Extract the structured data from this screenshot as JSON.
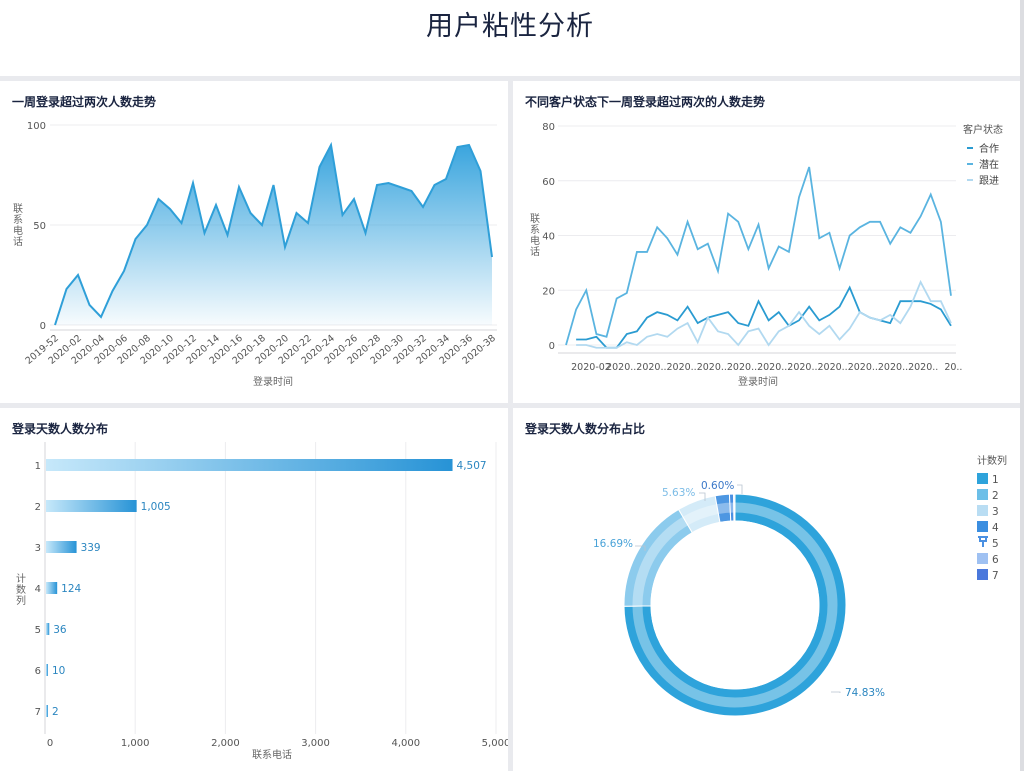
{
  "page": {
    "title": "用户粘性分析"
  },
  "cards": [
    {
      "title": "一周登录超过两次人数走势"
    },
    {
      "title": "不同客户状态下一周登录超过两次的人数走势"
    },
    {
      "title": "登录天数人数分布"
    },
    {
      "title": "登录天数人数分布占比"
    }
  ],
  "chart_data": [
    {
      "type": "area",
      "title": "一周登录超过两次人数走势",
      "xlabel": "登录时间",
      "ylabel": "联系电话",
      "ylim": [
        0,
        100
      ],
      "yticks": [
        "0",
        "50",
        "100"
      ],
      "grid": true,
      "x": [
        "2019-52",
        "2020-01",
        "2020-02",
        "2020-03",
        "2020-04",
        "2020-05",
        "2020-06",
        "2020-07",
        "2020-08",
        "2020-09",
        "2020-10",
        "2020-11",
        "2020-12",
        "2020-13",
        "2020-14",
        "2020-15",
        "2020-16",
        "2020-17",
        "2020-18",
        "2020-19",
        "2020-20",
        "2020-21",
        "2020-22",
        "2020-23",
        "2020-24",
        "2020-25",
        "2020-26",
        "2020-27",
        "2020-28",
        "2020-29",
        "2020-30",
        "2020-31",
        "2020-32",
        "2020-33",
        "2020-34",
        "2020-35",
        "2020-36",
        "2020-37",
        "2020-38"
      ],
      "xticks": [
        "2019-52",
        "2020-02",
        "2020-04",
        "2020-06",
        "2020-08",
        "2020-10",
        "2020-12",
        "2020-14",
        "2020-16",
        "2020-18",
        "2020-20",
        "2020-22",
        "2020-24",
        "2020-26",
        "2020-28",
        "2020-30",
        "2020-32",
        "2020-34",
        "2020-36",
        "2020-38"
      ],
      "values": [
        0,
        18,
        25,
        10,
        4,
        17,
        27,
        43,
        50,
        63,
        58,
        51,
        71,
        46,
        60,
        45,
        69,
        56,
        50,
        70,
        39,
        56,
        51,
        79,
        90,
        55,
        63,
        46,
        70,
        71,
        69,
        67,
        59,
        70,
        73,
        89,
        90,
        77,
        34
      ],
      "color": "#2f9fd8"
    },
    {
      "type": "line",
      "title": "不同客户状态下一周登录超过两次的人数走势",
      "xlabel": "登录时间",
      "ylabel": "联系电话",
      "ylim": [
        0,
        80
      ],
      "yticks": [
        "0",
        "20",
        "40",
        "60",
        "80"
      ],
      "grid": true,
      "xticks": [
        "2020-02",
        "2020..",
        "2020..",
        "2020..",
        "2020..",
        "2020..",
        "2020..",
        "2020..",
        "2020..",
        "2020..",
        "2020..",
        "2020..",
        "20.."
      ],
      "legend": {
        "title": "客户状态",
        "position": "right"
      },
      "series": [
        {
          "name": "合作",
          "color": "#2a9bd1",
          "values": [
            null,
            2,
            2,
            3,
            -1,
            -1,
            4,
            5,
            10,
            12,
            11,
            9,
            14,
            8,
            10,
            11,
            12,
            8,
            7,
            16,
            9,
            12,
            7,
            9,
            14,
            9,
            11,
            14,
            21,
            12,
            10,
            9,
            8,
            16,
            16,
            16,
            15,
            13,
            7
          ]
        },
        {
          "name": "潜在",
          "color": "#5ab4e0",
          "values": [
            0,
            13,
            20,
            4,
            3,
            17,
            19,
            34,
            34,
            43,
            39,
            33,
            45,
            35,
            37,
            27,
            48,
            45,
            35,
            44,
            28,
            36,
            34,
            54,
            65,
            39,
            41,
            28,
            40,
            43,
            45,
            45,
            37,
            43,
            41,
            47,
            55,
            45,
            18
          ]
        },
        {
          "name": "跟进",
          "color": "#b2d9f0",
          "values": [
            null,
            0,
            0,
            -1,
            -1,
            -1,
            1,
            0,
            3,
            4,
            3,
            6,
            8,
            1,
            10,
            5,
            4,
            0,
            5,
            6,
            0,
            5,
            7,
            12,
            7,
            4,
            7,
            2,
            6,
            12,
            10,
            9,
            11,
            8,
            14,
            23,
            16,
            16,
            8
          ]
        }
      ]
    },
    {
      "type": "bar",
      "orientation": "horizontal",
      "title": "登录天数人数分布",
      "xlabel": "联系电话",
      "ylabel": "计数列",
      "xlim": [
        0,
        5000
      ],
      "xticks": [
        "0",
        "1,000",
        "2,000",
        "3,000",
        "4,000",
        "5,000"
      ],
      "categories": [
        "1",
        "2",
        "3",
        "4",
        "5",
        "6",
        "7"
      ],
      "values": [
        4507,
        1005,
        339,
        124,
        36,
        10,
        2
      ],
      "value_labels": [
        "4,507",
        "1,005",
        "339",
        "124",
        "36",
        "10",
        "2"
      ],
      "grid": true
    },
    {
      "type": "pie",
      "donut": true,
      "title": "登录天数人数分布占比",
      "legend": {
        "title": "计数列",
        "position": "right",
        "items": [
          "1",
          "2",
          "3",
          "4",
          "5",
          "6",
          "7"
        ]
      },
      "categories": [
        "1",
        "2",
        "3",
        "4",
        "5",
        "6",
        "7"
      ],
      "values": [
        74.83,
        16.69,
        5.63,
        2.06,
        0.6,
        0.17,
        0.03
      ],
      "labels": [
        "74.83%",
        "16.69%",
        "5.63%",
        "",
        "0.60%",
        "",
        ""
      ],
      "colors": [
        "#2ea3db",
        "#6cbfe8",
        "#b9ddf3",
        "#3b8ee0",
        "#4a90e2",
        "#9fc1f2",
        "#4a78dc"
      ]
    }
  ]
}
